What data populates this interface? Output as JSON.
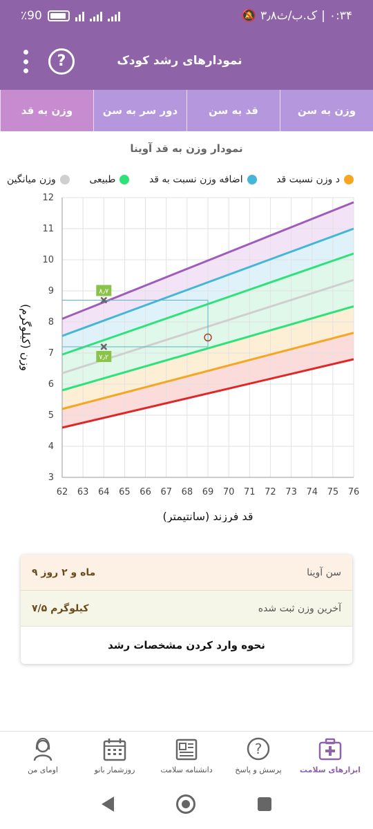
{
  "status_bar": {
    "time": "۰:۳۴",
    "date_text": "۳٫۸ک.ب/ث",
    "battery": "٪90"
  },
  "app_bar": {
    "title": "نمودارهای رشد کودک",
    "help_symbol": "?"
  },
  "tabs": [
    {
      "label": "وزن به سن",
      "active": false
    },
    {
      "label": "قد به سن",
      "active": false
    },
    {
      "label": "دور سر به سن",
      "active": false
    },
    {
      "label": "وزن به قد",
      "active": true
    }
  ],
  "chart_title": "نمودار وزن به قد آوینا",
  "legend": [
    {
      "label": "د وزن نسبت قد",
      "color": "#f5a623"
    },
    {
      "label": "اضافه وزن نسبت به قد",
      "color": "#45b6d6"
    },
    {
      "label": "طبیعی",
      "color": "#2ee27a"
    },
    {
      "label": "وزن میانگین",
      "color": "#cfcfcf"
    }
  ],
  "chart_data": {
    "type": "line",
    "xlabel": "قد فرزند (سانتیمتر)",
    "ylabel": "وزن (کیلوگرم)",
    "xlim": [
      62,
      76
    ],
    "ylim": [
      3,
      12
    ],
    "x_ticks": [
      62,
      63,
      64,
      65,
      66,
      67,
      68,
      69,
      70,
      71,
      72,
      73,
      74,
      75,
      76
    ],
    "y_ticks": [
      3,
      4,
      5,
      6,
      7,
      8,
      9,
      10,
      11,
      12
    ],
    "grid": true,
    "x": [
      62,
      76
    ],
    "series": [
      {
        "color": "#e02727",
        "values": [
          4.6,
          6.8
        ]
      },
      {
        "color": "#f5a623",
        "values": [
          5.2,
          7.65
        ]
      },
      {
        "color": "#2ee27a",
        "values": [
          5.8,
          8.5
        ]
      },
      {
        "color": "#cfcfcf",
        "values": [
          6.35,
          9.35
        ]
      },
      {
        "color": "#2ee27a",
        "values": [
          6.95,
          10.2
        ]
      },
      {
        "color": "#45b6d6",
        "values": [
          7.55,
          11.0
        ]
      },
      {
        "color": "#a05cb8",
        "values": [
          8.1,
          11.85
        ]
      }
    ],
    "bands": [
      {
        "lower": 0,
        "upper": 1,
        "color": "#fbd5d5"
      },
      {
        "lower": 1,
        "upper": 2,
        "color": "#fdeccf"
      },
      {
        "lower": 2,
        "upper": 4,
        "color": "#d9f7e6"
      },
      {
        "lower": 4,
        "upper": 5,
        "color": "#d9f0f8"
      },
      {
        "lower": 5,
        "upper": 6,
        "color": "#f0dff5"
      }
    ],
    "markers": [
      {
        "x": 64,
        "y": 8.7,
        "label": "۸٫۷"
      },
      {
        "x": 64,
        "y": 7.2,
        "label": "۷٫۲"
      }
    ],
    "current_point": {
      "x": 69,
      "y": 7.5
    },
    "guide_lines": [
      {
        "x": 69,
        "y1": 8.7,
        "y2": 7.2
      }
    ]
  },
  "info_card": {
    "age_label": "سن آوینا",
    "age_value": "۹ ماه و ۲ روز",
    "weight_label": "آخرین وزن ثبت شده",
    "weight_value": "۷/۵ کیلوگرم",
    "how_to_label": "نحوه وارد کردن مشخصات رشد"
  },
  "bottom_nav": [
    {
      "label": "ابزارهای سلامت",
      "icon": "medical-kit-icon",
      "active": true
    },
    {
      "label": "پرسش و پاسخ",
      "icon": "question-bubble-icon",
      "active": false
    },
    {
      "label": "دانشنامه سلامت",
      "icon": "newspaper-icon",
      "active": false
    },
    {
      "label": "روزشمار بانو",
      "icon": "calendar-icon",
      "active": false
    },
    {
      "label": "اومای من",
      "icon": "profile-woman-icon",
      "active": false
    }
  ]
}
